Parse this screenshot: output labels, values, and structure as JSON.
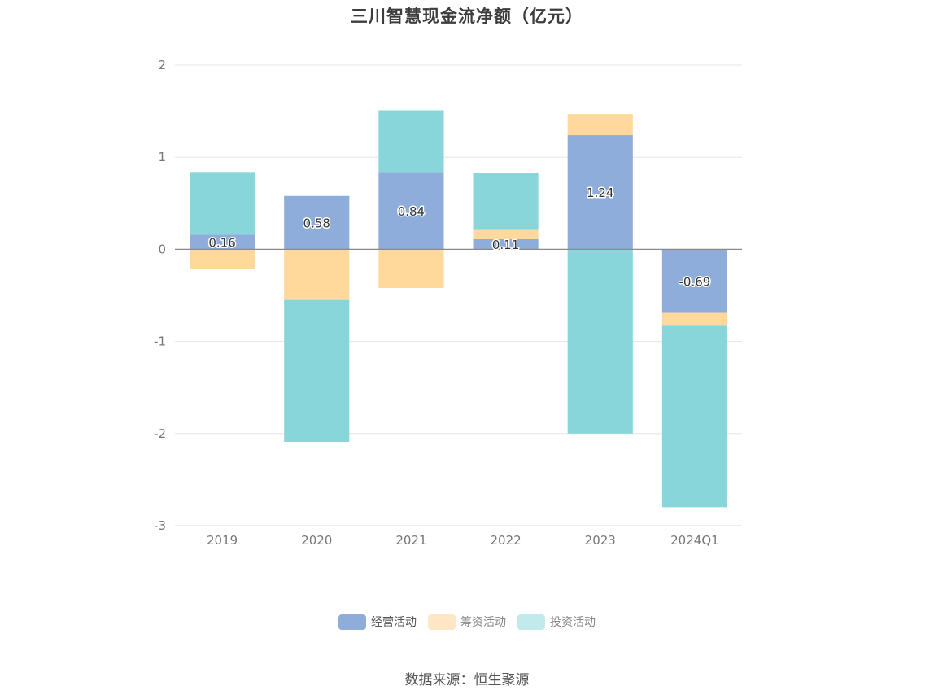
{
  "chart_data": {
    "type": "bar",
    "stacked": true,
    "title": "三川智慧现金流净额（亿元）",
    "xlabel": "",
    "ylabel": "",
    "categories": [
      "2019",
      "2020",
      "2021",
      "2022",
      "2023",
      "2024Q1"
    ],
    "ylim": [
      -3,
      2
    ],
    "yticks": [
      2,
      1,
      0,
      -1,
      -2,
      -3
    ],
    "grid": true,
    "legend_position": "bottom",
    "series": [
      {
        "name": "经营活动",
        "color": "#8EADDB",
        "values": [
          0.16,
          0.58,
          0.84,
          0.11,
          1.24,
          -0.69
        ],
        "labels": [
          "0.16",
          "0.58",
          "0.84",
          "0.11",
          "1.24",
          "-0.69"
        ]
      },
      {
        "name": "筹资活动",
        "color": "#FFD99C",
        "values": [
          -0.21,
          -0.55,
          -0.42,
          0.1,
          0.23,
          -0.14
        ]
      },
      {
        "name": "投资活动",
        "color": "#88D6DA",
        "values": [
          0.68,
          -1.54,
          0.67,
          0.62,
          -2.0,
          -1.97
        ]
      }
    ]
  },
  "legend": {
    "items": [
      {
        "label": "经营活动",
        "color": "#8EADDB"
      },
      {
        "label": "筹资活动",
        "color": "#FFE6C4"
      },
      {
        "label": "投资活动",
        "color": "#C2EAEC"
      }
    ]
  },
  "footer": {
    "source": "数据来源：恒生聚源"
  }
}
